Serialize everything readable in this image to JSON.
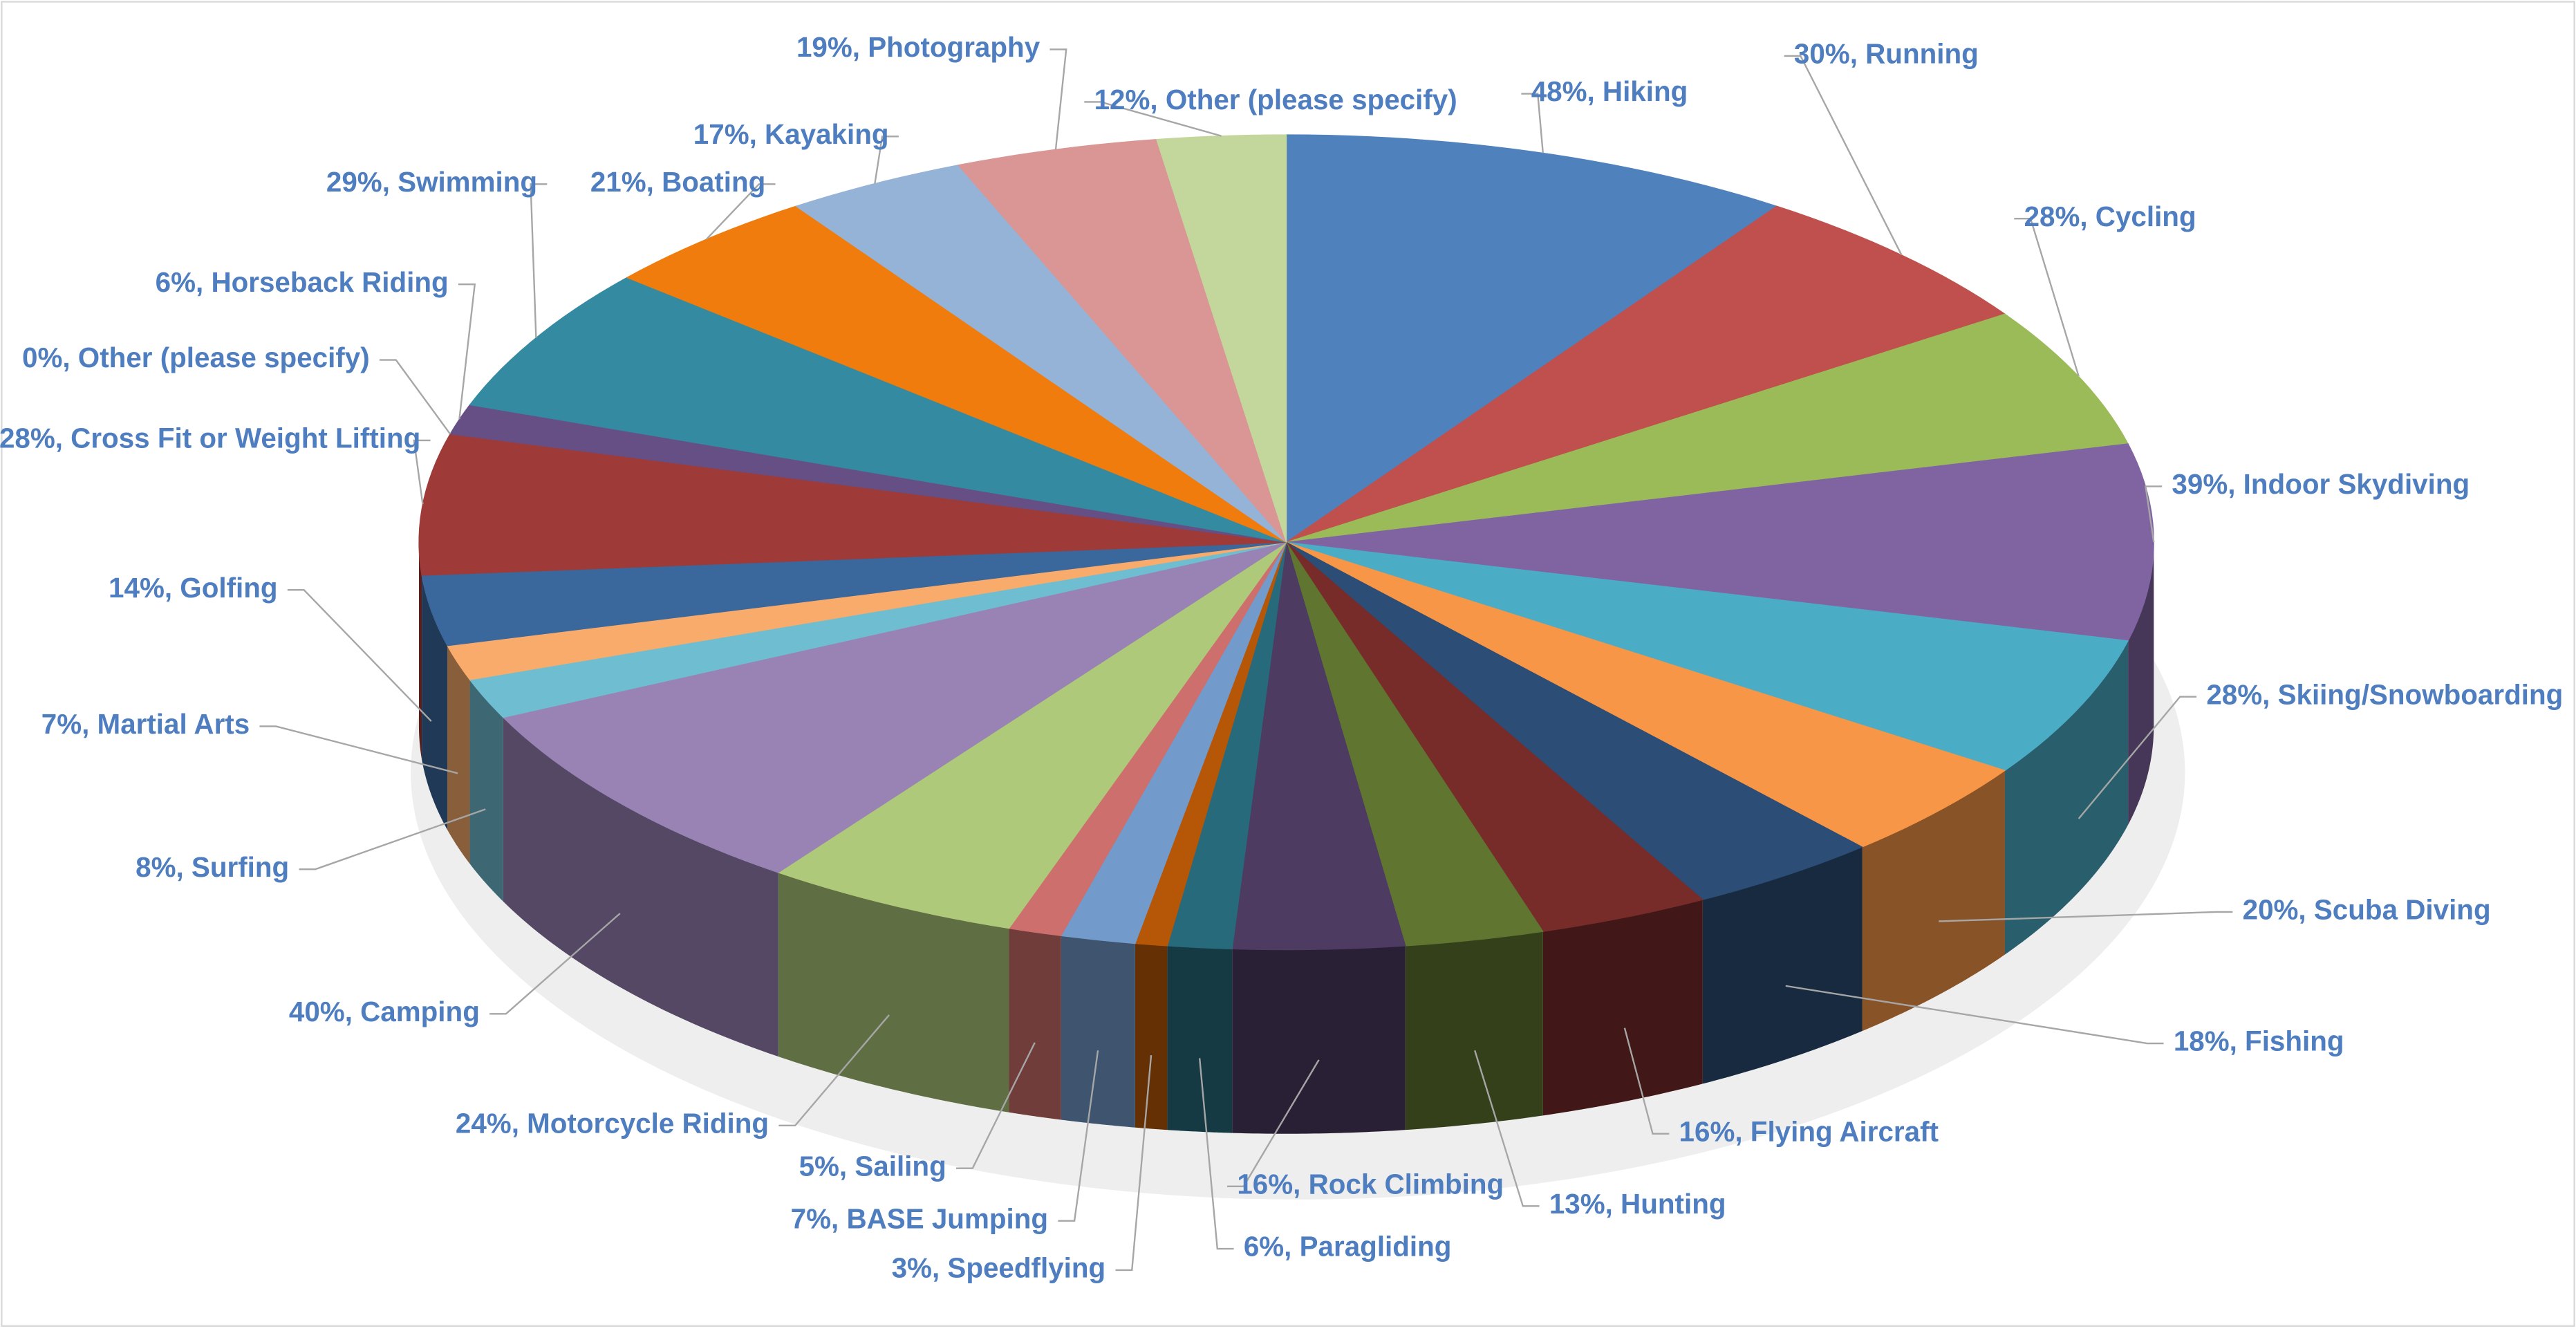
{
  "chart_data": {
    "type": "pie3d",
    "values": [
      48,
      30,
      28,
      39,
      28,
      20,
      18,
      16,
      13,
      16,
      6,
      3,
      7,
      5,
      24,
      40,
      8,
      7,
      14,
      28,
      0,
      6,
      29,
      21,
      17,
      19,
      12
    ],
    "value_labels": [
      "48%, Hiking",
      "30%, Running",
      "28%, Cycling",
      "39%, Indoor Skydiving",
      "28%, Skiing/Snowboarding",
      "20%, Scuba Diving",
      "18%, Fishing",
      "16%, Flying Aircraft",
      "13%, Hunting",
      "16%, Rock Climbing",
      "6%, Paragliding",
      "3%, Speedflying",
      "7%, BASE Jumping",
      "5%, Sailing",
      "24%, Motorcycle Riding",
      "40%, Camping",
      "8%, Surfing",
      "7%, Martial Arts",
      "14%, Golfing",
      "28%, Cross Fit or Weight Lifting",
      "0%, Other (please specify)",
      "6%, Horseback Riding",
      "29%, Swimming",
      "21%, Boating",
      "17%, Kayaking",
      "19%, Photography",
      "12%, Other (please specify)"
    ],
    "colors": [
      "#4f81bd",
      "#c0504d",
      "#9bbb59",
      "#8064a2",
      "#4bacc6",
      "#f79646",
      "#2c4d75",
      "#772c2a",
      "#5f7530",
      "#4d3b62",
      "#276a7c",
      "#b65708",
      "#729aca",
      "#cd6f6c",
      "#afc97a",
      "#9983b5",
      "#6fbdd1",
      "#f9ab6b",
      "#3a679c",
      "#9e3b38",
      "#7e9a46",
      "#664f84",
      "#348aa1",
      "#f07c0d",
      "#95b3d7",
      "#d99694",
      "#c3d69b"
    ]
  }
}
